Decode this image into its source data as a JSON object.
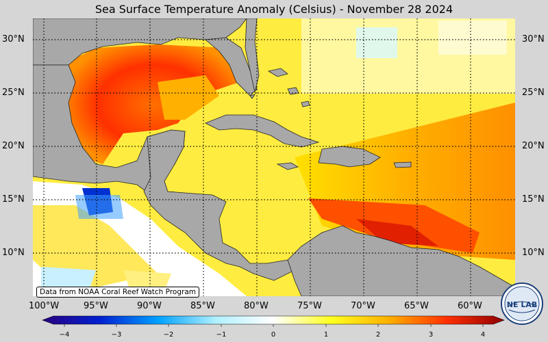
{
  "title": "Sea Surface Temperature Anomaly (Celsius) - November 28 2024",
  "credit": "Data from NOAA Coral Reef Watch Program",
  "logo": {
    "icon": "nesdis-lab-logo",
    "text": "NE LAB"
  },
  "latitudes": [
    {
      "value": 30,
      "label": "30°N"
    },
    {
      "value": 25,
      "label": "25°N"
    },
    {
      "value": 20,
      "label": "20°N"
    },
    {
      "value": 15,
      "label": "15°N"
    },
    {
      "value": 10,
      "label": "10°N"
    }
  ],
  "longitudes": [
    {
      "value": -100,
      "label": "100°W"
    },
    {
      "value": -95,
      "label": "95°W"
    },
    {
      "value": -90,
      "label": "90°W"
    },
    {
      "value": -85,
      "label": "85°W"
    },
    {
      "value": -80,
      "label": "80°W"
    },
    {
      "value": -75,
      "label": "75°W"
    },
    {
      "value": -70,
      "label": "70°W"
    },
    {
      "value": -65,
      "label": "65°W"
    },
    {
      "value": -60,
      "label": "60°W"
    }
  ],
  "colorbar": {
    "min": -4,
    "max": 4,
    "ticks": [
      "−4",
      "−3",
      "−2",
      "−1",
      "0",
      "1",
      "2",
      "3",
      "4"
    ],
    "colors": [
      "#2a0080",
      "#0020d0",
      "#00a0ff",
      "#b0f0ff",
      "#ffffff",
      "#ffff20",
      "#ffb000",
      "#ff3000",
      "#900000"
    ]
  },
  "colors": {
    "land": "#a8a8a8",
    "background": "#d6d6d6"
  }
}
